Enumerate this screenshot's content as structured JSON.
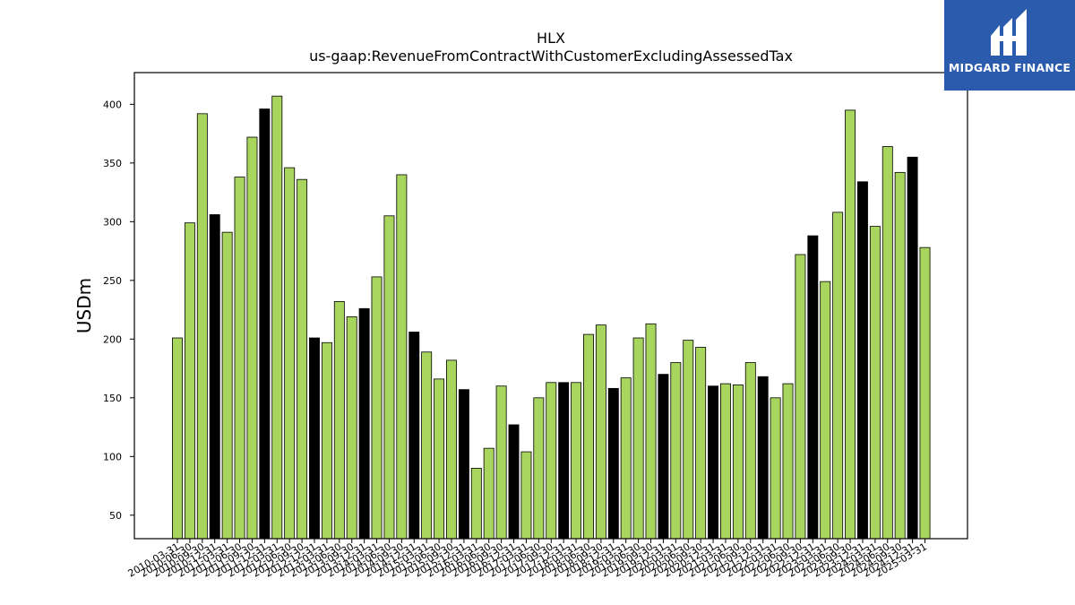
{
  "chart_data": {
    "type": "bar",
    "title": "HLX",
    "subtitle": "us-gaap:RevenueFromContractWithCustomerExcludingAssessedTax",
    "ylabel": "USDm",
    "xlabel": "",
    "ylim": [
      30,
      427
    ],
    "yticks": [
      50,
      100,
      150,
      200,
      250,
      300,
      350,
      400
    ],
    "grid": false,
    "colors": {
      "quarter": "#a8d55e",
      "annual": "#000000",
      "edge": "#000000"
    },
    "bars": [
      {
        "label": "2010-03-31",
        "value": 201,
        "annual": false
      },
      {
        "label": "2010-06-30",
        "value": 299,
        "annual": false
      },
      {
        "label": "2010-09-30",
        "value": 392,
        "annual": false
      },
      {
        "label": "2010-12-31",
        "value": 306,
        "annual": true
      },
      {
        "label": "2011-03-31",
        "value": 291,
        "annual": false
      },
      {
        "label": "2011-06-30",
        "value": 338,
        "annual": false
      },
      {
        "label": "2011-09-30",
        "value": 372,
        "annual": false
      },
      {
        "label": "2011-12-31",
        "value": 396,
        "annual": true
      },
      {
        "label": "2012-03-31",
        "value": 407,
        "annual": false
      },
      {
        "label": "2012-06-30",
        "value": 346,
        "annual": false
      },
      {
        "label": "2012-09-30",
        "value": 336,
        "annual": false
      },
      {
        "label": "2012-12-31",
        "value": 201,
        "annual": true
      },
      {
        "label": "2013-03-31",
        "value": 197,
        "annual": false
      },
      {
        "label": "2013-06-30",
        "value": 232,
        "annual": false
      },
      {
        "label": "2013-09-30",
        "value": 219,
        "annual": false
      },
      {
        "label": "2013-12-31",
        "value": 226,
        "annual": true
      },
      {
        "label": "2014-03-31",
        "value": 253,
        "annual": false
      },
      {
        "label": "2014-06-30",
        "value": 305,
        "annual": false
      },
      {
        "label": "2014-09-30",
        "value": 340,
        "annual": false
      },
      {
        "label": "2014-12-31",
        "value": 206,
        "annual": true
      },
      {
        "label": "2015-03-31",
        "value": 189,
        "annual": false
      },
      {
        "label": "2015-06-30",
        "value": 166,
        "annual": false
      },
      {
        "label": "2015-09-30",
        "value": 182,
        "annual": false
      },
      {
        "label": "2015-12-31",
        "value": 157,
        "annual": true
      },
      {
        "label": "2016-03-31",
        "value": 90,
        "annual": false
      },
      {
        "label": "2016-06-30",
        "value": 107,
        "annual": false
      },
      {
        "label": "2016-09-30",
        "value": 160,
        "annual": false
      },
      {
        "label": "2016-12-31",
        "value": 127,
        "annual": true
      },
      {
        "label": "2017-03-31",
        "value": 104,
        "annual": false
      },
      {
        "label": "2017-06-30",
        "value": 150,
        "annual": false
      },
      {
        "label": "2017-09-30",
        "value": 163,
        "annual": false
      },
      {
        "label": "2017-12-31",
        "value": 163,
        "annual": true
      },
      {
        "label": "2018-03-31",
        "value": 163,
        "annual": false
      },
      {
        "label": "2018-06-30",
        "value": 204,
        "annual": false
      },
      {
        "label": "2018-09-30",
        "value": 212,
        "annual": false
      },
      {
        "label": "2018-12-31",
        "value": 158,
        "annual": true
      },
      {
        "label": "2019-03-31",
        "value": 167,
        "annual": false
      },
      {
        "label": "2019-06-30",
        "value": 201,
        "annual": false
      },
      {
        "label": "2019-09-30",
        "value": 213,
        "annual": false
      },
      {
        "label": "2019-12-31",
        "value": 170,
        "annual": true
      },
      {
        "label": "2020-03-31",
        "value": 180,
        "annual": false
      },
      {
        "label": "2020-06-30",
        "value": 199,
        "annual": false
      },
      {
        "label": "2020-09-30",
        "value": 193,
        "annual": false
      },
      {
        "label": "2020-12-31",
        "value": 160,
        "annual": true
      },
      {
        "label": "2021-03-31",
        "value": 162,
        "annual": false
      },
      {
        "label": "2021-06-30",
        "value": 161,
        "annual": false
      },
      {
        "label": "2021-09-30",
        "value": 180,
        "annual": false
      },
      {
        "label": "2021-12-31",
        "value": 168,
        "annual": true
      },
      {
        "label": "2022-03-31",
        "value": 150,
        "annual": false
      },
      {
        "label": "2022-06-30",
        "value": 162,
        "annual": false
      },
      {
        "label": "2022-09-30",
        "value": 272,
        "annual": false
      },
      {
        "label": "2022-12-31",
        "value": 288,
        "annual": true
      },
      {
        "label": "2023-03-31",
        "value": 249,
        "annual": false
      },
      {
        "label": "2023-06-30",
        "value": 308,
        "annual": false
      },
      {
        "label": "2023-09-30",
        "value": 395,
        "annual": false
      },
      {
        "label": "2023-12-31",
        "value": 334,
        "annual": true
      },
      {
        "label": "2024-03-31",
        "value": 296,
        "annual": false
      },
      {
        "label": "2024-06-30",
        "value": 364,
        "annual": false
      },
      {
        "label": "2024-09-30",
        "value": 342,
        "annual": false
      },
      {
        "label": "2024-12-31",
        "value": 355,
        "annual": true
      },
      {
        "label": "2025-03-31",
        "value": 278,
        "annual": false
      }
    ]
  },
  "logo": {
    "text": "MIDGARD FINANCE",
    "color": "#2a5bad"
  }
}
